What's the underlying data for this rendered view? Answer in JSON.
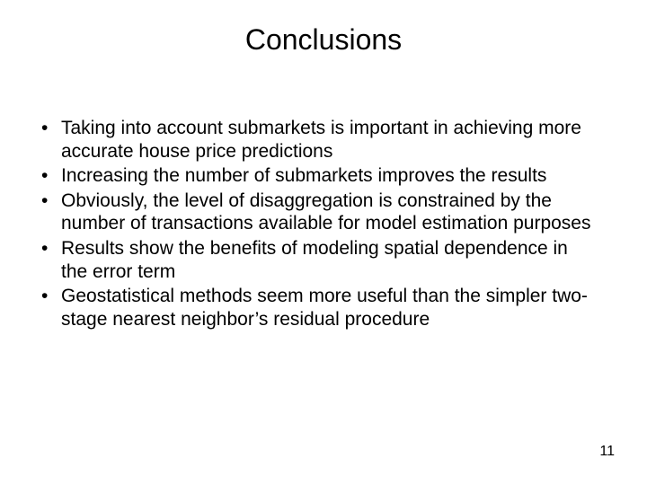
{
  "slide": {
    "title": "Conclusions",
    "bullets": [
      "Taking into account submarkets is important in achieving more accurate house price predictions",
      "Increasing the number of submarkets improves the results",
      "Obviously, the level of disaggregation is constrained by the number of transactions available for model estimation purposes",
      "Results show the benefits of modeling spatial dependence in the error term",
      "Geostatistical methods seem more useful than the simpler two-stage nearest neighbor’s residual procedure"
    ],
    "page_number": "11"
  },
  "style": {
    "background_color": "#ffffff",
    "text_color": "#000000",
    "title_fontsize": 32,
    "body_fontsize": 21,
    "pagenum_fontsize": 16,
    "font_family": "Arial, Helvetica, sans-serif"
  }
}
